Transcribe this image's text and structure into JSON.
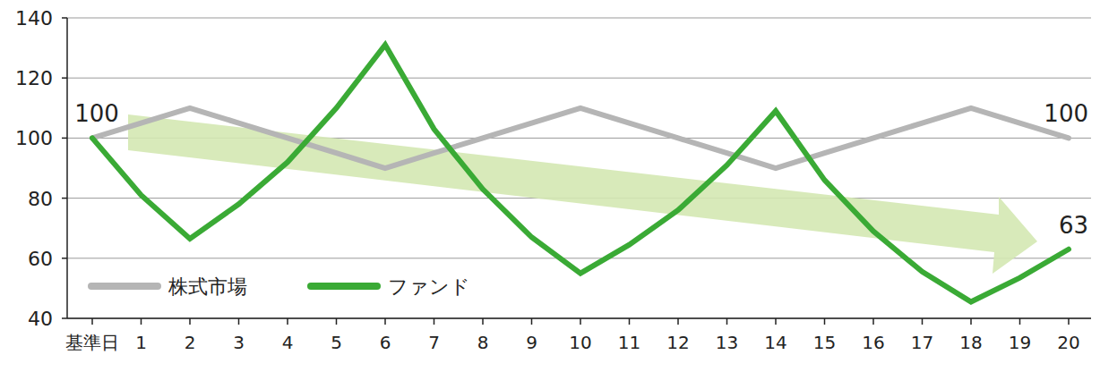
{
  "chart_data": {
    "type": "line",
    "categories": [
      "基準日",
      "1",
      "2",
      "3",
      "4",
      "5",
      "6",
      "7",
      "8",
      "9",
      "10",
      "11",
      "12",
      "13",
      "14",
      "15",
      "16",
      "17",
      "18",
      "19",
      "20"
    ],
    "series": [
      {
        "name": "株式市場",
        "color": "#b5b5b5",
        "values": [
          100,
          105,
          110,
          105,
          100,
          95,
          90,
          95,
          100,
          105,
          110,
          105,
          100,
          95,
          90,
          95,
          100,
          105,
          110,
          105,
          100
        ]
      },
      {
        "name": "ファンド",
        "color": "#3aaa35",
        "values": [
          100,
          81,
          66.5,
          78,
          92,
          110,
          131,
          103,
          83,
          67,
          55,
          64.5,
          76,
          91,
          109,
          86,
          69,
          55.5,
          45.5,
          53.5,
          63
        ]
      }
    ],
    "ylim": [
      40,
      140
    ],
    "yticks": [
      40,
      60,
      80,
      100,
      120,
      140
    ],
    "grid": true,
    "legend": "lower left",
    "annotations": [
      {
        "text": "100",
        "x": "基準日",
        "series": "株式市場"
      },
      {
        "text": "100",
        "x": "20",
        "series": "株式市場"
      },
      {
        "text": "63",
        "x": "20",
        "series": "ファンド"
      }
    ]
  }
}
